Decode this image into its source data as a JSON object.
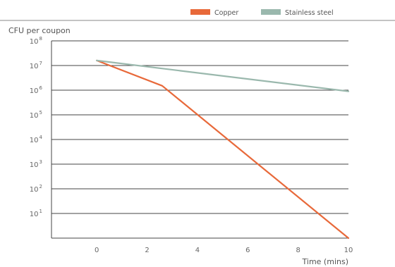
{
  "chart_data": {
    "type": "line",
    "title": "",
    "ylabel": "CFU per coupon",
    "xlabel": "Time (mins)",
    "y_scale": "log",
    "ylim": [
      1,
      100000000
    ],
    "xlim": [
      -1.8,
      10
    ],
    "x_ticks": [
      0,
      2,
      4,
      6,
      8,
      10
    ],
    "y_ticks": [
      {
        "value": 100000000,
        "base": "10",
        "exp": "8"
      },
      {
        "value": 10000000,
        "base": "10",
        "exp": "7"
      },
      {
        "value": 1000000,
        "base": "10",
        "exp": "6"
      },
      {
        "value": 100000,
        "base": "10",
        "exp": "5"
      },
      {
        "value": 10000,
        "base": "10",
        "exp": "4"
      },
      {
        "value": 1000,
        "base": "10",
        "exp": "3"
      },
      {
        "value": 100,
        "base": "10",
        "exp": "2"
      },
      {
        "value": 10,
        "base": "10",
        "exp": "1"
      }
    ],
    "grid": true,
    "legend_position": "top-right",
    "series": [
      {
        "name": "Copper",
        "color": "#e8693a",
        "x": [
          0,
          2.6,
          10
        ],
        "y": [
          16000000,
          1500000,
          1
        ]
      },
      {
        "name": "Stainless steel",
        "color": "#9ab8ad",
        "x": [
          0,
          10
        ],
        "y": [
          16000000,
          900000
        ]
      }
    ]
  }
}
